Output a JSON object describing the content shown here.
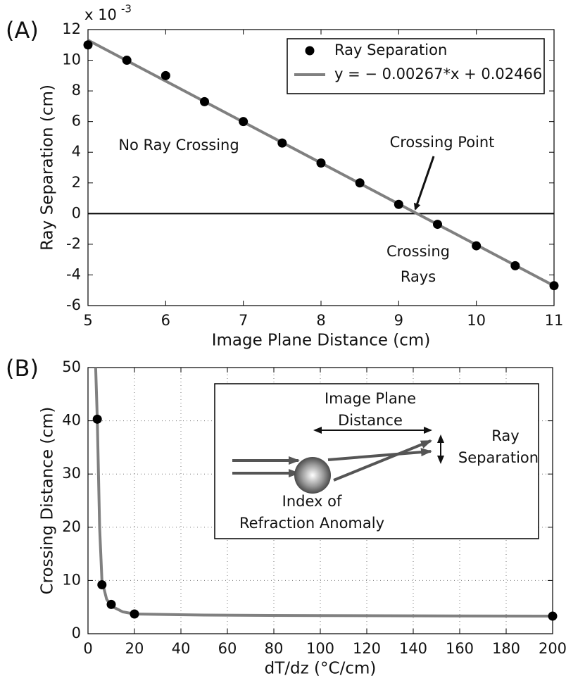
{
  "chart_data": [
    {
      "type": "scatter",
      "panel_label": "(A)",
      "xlabel": "Image Plane Distance (cm)",
      "ylabel": "Ray Separation (cm)",
      "y_multiplier": {
        "base": "x 10",
        "exponent": "-3"
      },
      "xlim": [
        5,
        11
      ],
      "xticks": [
        5,
        6,
        7,
        8,
        9,
        10,
        11
      ],
      "ylim": [
        -6,
        12
      ],
      "yticks": [
        -6,
        -4,
        -2,
        0,
        2,
        4,
        6,
        8,
        10,
        12
      ],
      "grid": false,
      "legend": "upper right",
      "series": [
        {
          "name": "Ray Separation",
          "type": "scatter",
          "color": "#000000",
          "x": [
            5,
            5.5,
            6,
            6.5,
            7,
            7.5,
            8,
            8.5,
            9,
            9.5,
            10,
            10.5,
            11
          ],
          "values": [
            11,
            10,
            9,
            7.3,
            6,
            4.6,
            3.3,
            2,
            0.6,
            -0.7,
            -2.1,
            -3.4,
            -4.7
          ]
        },
        {
          "name": "y = − 0.00267*x + 0.02466",
          "type": "line",
          "color": "#808080",
          "x": [
            5,
            11
          ],
          "values": [
            11.31,
            -4.71
          ]
        }
      ],
      "annotations": [
        "No Ray Crossing",
        "Crossing Point",
        "Crossing",
        "Rays"
      ]
    },
    {
      "type": "line",
      "panel_label": "(B)",
      "xlabel": "dT/dz (°C/cm)",
      "ylabel": "Crossing Distance (cm)",
      "xlim": [
        0,
        200
      ],
      "xticks": [
        0,
        20,
        40,
        60,
        80,
        100,
        120,
        140,
        160,
        180,
        200
      ],
      "ylim": [
        0,
        50
      ],
      "yticks": [
        0,
        10,
        20,
        30,
        40,
        50
      ],
      "grid": true,
      "series": [
        {
          "type": "line",
          "color": "#808080",
          "x": [
            3.3,
            4,
            5,
            6,
            8,
            10,
            15,
            20,
            50,
            100,
            200
          ],
          "values": [
            50,
            40.3,
            20,
            10,
            6.5,
            5.2,
            4.1,
            3.7,
            3.5,
            3.4,
            3.3
          ]
        },
        {
          "type": "scatter",
          "color": "#000000",
          "x": [
            4,
            6,
            10,
            20,
            200
          ],
          "values": [
            40.3,
            9.2,
            5.5,
            3.7,
            3.3
          ]
        }
      ],
      "inset": [
        "Image Plane",
        "Distance",
        "Ray",
        "Separation",
        "Index of",
        "Refraction Anomaly"
      ]
    }
  ]
}
